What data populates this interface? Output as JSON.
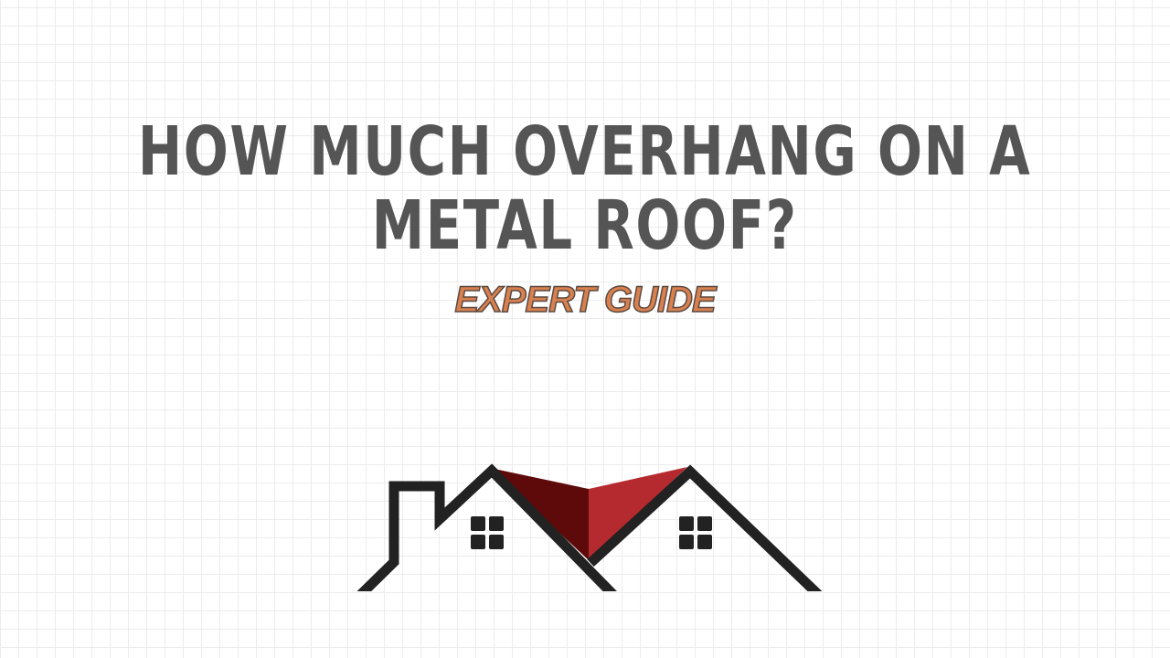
{
  "title": {
    "line1": "HOW MUCH OVERHANG ON A",
    "line2": "METAL ROOF?"
  },
  "subtitle": "EXPERT GUIDE",
  "colors": {
    "title": "#555555",
    "subtitle": "#d9804f",
    "roof_dark": "#5e0a0a",
    "roof_red": "#b52a2e",
    "house_line": "#222222",
    "grid": "#ececec"
  },
  "illustration": {
    "icon": "house-roof-logo-icon"
  }
}
